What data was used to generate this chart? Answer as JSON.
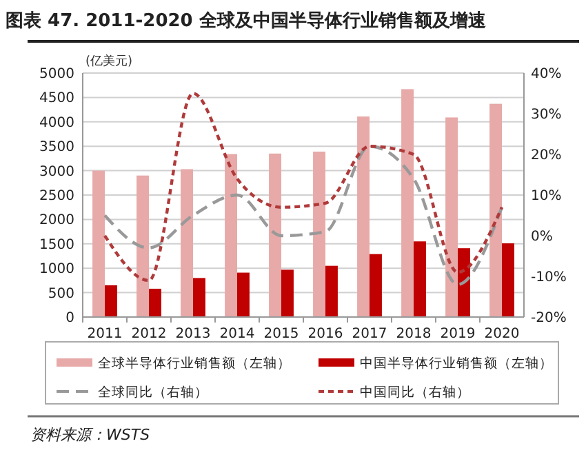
{
  "chart_data": {
    "type": "bar",
    "title": "图表 47. 2011-2020 全球及中国半导体行业销售额及增速",
    "ylabel": "(亿美元)",
    "categories": [
      "2011",
      "2012",
      "2013",
      "2014",
      "2015",
      "2016",
      "2017",
      "2018",
      "2019",
      "2020"
    ],
    "series": [
      {
        "name": "全球半导体行业销售额（左轴）",
        "color": "#e8a9a9",
        "values": [
          3000,
          2900,
          3030,
          3340,
          3350,
          3390,
          4110,
          4670,
          4090,
          4370
        ]
      },
      {
        "name": "中国半导体行业销售额（左轴）",
        "color": "#c00000",
        "values": [
          650,
          580,
          800,
          910,
          970,
          1050,
          1290,
          1550,
          1410,
          1510
        ]
      },
      {
        "name": "全球同比（右轴）",
        "type": "line",
        "axis": "y2",
        "color": "#999999",
        "line_style": "dashed",
        "values": [
          5,
          -3,
          5,
          10,
          0,
          1,
          22,
          14,
          -12,
          7
        ]
      },
      {
        "name": "中国同比（右轴）",
        "type": "line",
        "axis": "y2",
        "color": "#b03a3a",
        "line_style": "dotted",
        "values": [
          0,
          -11,
          35,
          14,
          7,
          8,
          22,
          20,
          -9,
          7
        ]
      }
    ],
    "ylim": [
      0,
      5000
    ],
    "yticks": [
      0,
      500,
      1000,
      1500,
      2000,
      2500,
      3000,
      3500,
      4000,
      4500,
      5000
    ],
    "y2lim": [
      -20,
      40
    ],
    "y2ticks": [
      {
        "value": -20,
        "label": "-20%"
      },
      {
        "value": -10,
        "label": "-10%"
      },
      {
        "value": 0,
        "label": "0%"
      },
      {
        "value": 10,
        "label": "10%"
      },
      {
        "value": 20,
        "label": "20%"
      },
      {
        "value": 30,
        "label": "30%"
      },
      {
        "value": 40,
        "label": "40%"
      }
    ],
    "grid": "y",
    "legend": "bottom",
    "marker": "none",
    "annotations": [
      "资料来源：WSTS"
    ]
  }
}
